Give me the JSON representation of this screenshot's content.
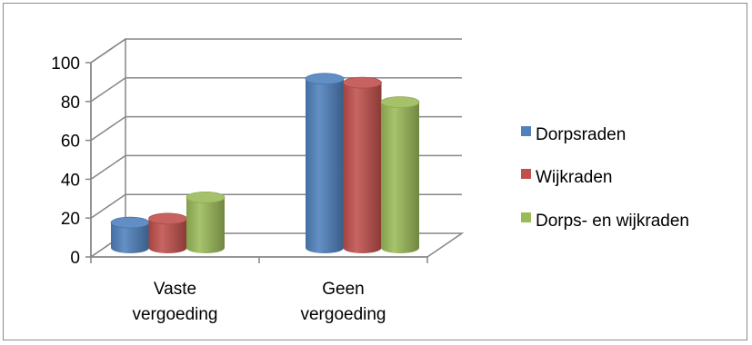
{
  "chart_data": {
    "type": "bar",
    "style": "3d-cylinder",
    "categories": [
      "Vaste vergoeding",
      "Geen vergoeding"
    ],
    "category_lines": [
      [
        "Vaste",
        "vergoeding"
      ],
      [
        "Geen",
        "vergoeding"
      ]
    ],
    "series": [
      {
        "name": "Dorpsraden",
        "values": [
          13,
          87
        ],
        "color": "#4f81bd"
      },
      {
        "name": "Wijkraden",
        "values": [
          15,
          85
        ],
        "color": "#c0504d"
      },
      {
        "name": "Dorps- en wijkraden",
        "values": [
          26,
          75
        ],
        "color": "#9bbb59"
      }
    ],
    "ylim": [
      0,
      100
    ],
    "yticks": [
      "0",
      "20",
      "40",
      "60",
      "80",
      "100"
    ],
    "grid": true,
    "legend_position": "right"
  }
}
